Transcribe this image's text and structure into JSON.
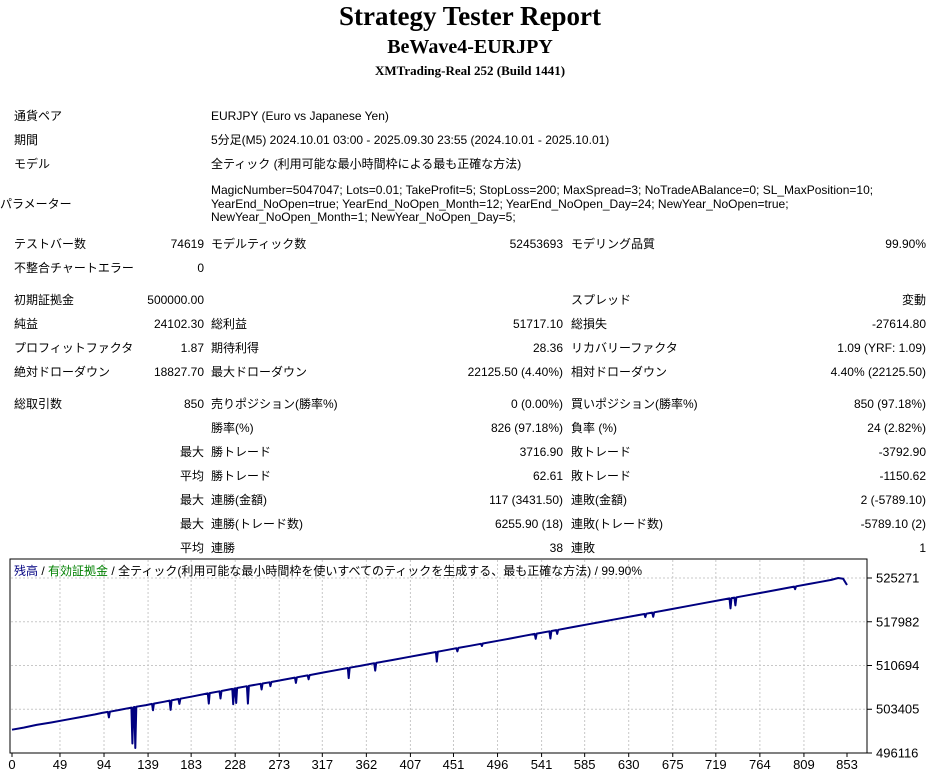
{
  "header": {
    "title": "Strategy Tester Report",
    "subtitle": "BeWave4-EURJPY",
    "server": "XMTrading-Real 252 (Build 1441)"
  },
  "report": {
    "rows": [
      {
        "type": "wide",
        "label": "通貨ペア",
        "value": "EURJPY (Euro vs Japanese Yen)"
      },
      {
        "type": "wide",
        "label": "期間",
        "value": "5分足(M5) 2024.10.01 03:00 - 2025.09.30 23:55 (2024.10.01 - 2025.10.01)"
      },
      {
        "type": "wide",
        "label": "モデル",
        "value": "全ティック (利用可能な最小時間枠による最も正確な方法)"
      },
      {
        "type": "params",
        "label": "パラメーター",
        "lines": [
          "MagicNumber=5047047; Lots=0.01; TakeProfit=5; StopLoss=200; MaxSpread=3; NoTradeABalance=0; SL_MaxPosition=10;",
          "YearEnd_NoOpen=true; YearEnd_NoOpen_Month=12; YearEnd_NoOpen_Day=24; NewYear_NoOpen=true;",
          "NewYear_NoOpen_Month=1; NewYear_NoOpen_Day=5;"
        ]
      },
      {
        "type": "six",
        "cells": [
          "テストバー数",
          "74619",
          "モデルティック数",
          "52453693",
          "モデリング品質",
          "99.90%"
        ]
      },
      {
        "type": "six",
        "cells": [
          "不整合チャートエラー",
          "0",
          "",
          "",
          "",
          ""
        ]
      },
      {
        "type": "gap"
      },
      {
        "type": "six",
        "cells": [
          "初期証拠金",
          "500000.00",
          "",
          "",
          "スプレッド",
          "変動"
        ]
      },
      {
        "type": "six",
        "cells": [
          "純益",
          "24102.30",
          "総利益",
          "51717.10",
          "総損失",
          "-27614.80"
        ]
      },
      {
        "type": "six",
        "cells": [
          "プロフィットファクタ",
          "1.87",
          "期待利得",
          "28.36",
          "リカバリーファクタ",
          "1.09 (YRF: 1.09)"
        ]
      },
      {
        "type": "six",
        "cells": [
          "絶対ドローダウン",
          "18827.70",
          "最大ドローダウン",
          "22125.50 (4.40%)",
          "相対ドローダウン",
          "4.40% (22125.50)"
        ]
      },
      {
        "type": "gap"
      },
      {
        "type": "six",
        "cells": [
          "総取引数",
          "850",
          "売りポジション(勝率%)",
          "0 (0.00%)",
          "買いポジション(勝率%)",
          "850 (97.18%)"
        ]
      },
      {
        "type": "six",
        "cells": [
          "",
          "",
          "勝率(%)",
          "826 (97.18%)",
          "負率 (%)",
          "24 (2.82%)"
        ]
      },
      {
        "type": "six",
        "cells": [
          "",
          "最大",
          "勝トレード",
          "3716.90",
          "敗トレード",
          "-3792.90"
        ]
      },
      {
        "type": "six",
        "cells": [
          "",
          "平均",
          "勝トレード",
          "62.61",
          "敗トレード",
          "-1150.62"
        ]
      },
      {
        "type": "six",
        "cells": [
          "",
          "最大",
          "連勝(金額)",
          "117 (3431.50)",
          "連敗(金額)",
          "2 (-5789.10)"
        ]
      },
      {
        "type": "six",
        "cells": [
          "",
          "最大",
          "連勝(トレード数)",
          "6255.90 (18)",
          "連敗(トレード数)",
          "-5789.10 (2)"
        ]
      },
      {
        "type": "six",
        "cells": [
          "",
          "平均",
          "連勝",
          "38",
          "連敗",
          "1"
        ]
      }
    ]
  },
  "chart_data": {
    "type": "line",
    "legend": {
      "balance": "残高",
      "equity": "有効証拠金",
      "model": "全ティック(利用可能な最小時間枠を使いすべてのティックを生成する、最も正確な方法)",
      "quality": "99.90%",
      "separator": " / "
    },
    "x_ticks": [
      0,
      49,
      94,
      139,
      183,
      228,
      273,
      317,
      362,
      407,
      451,
      496,
      541,
      585,
      630,
      675,
      719,
      764,
      809,
      853
    ],
    "y_ticks": [
      525271,
      517982,
      510694,
      503405,
      496116
    ],
    "xlim": [
      0,
      853
    ],
    "ylim": [
      496116,
      528437
    ],
    "grid": "dashed",
    "initial_deposit": 500000,
    "final_balance": 524102.3,
    "series": [
      {
        "name": "残高",
        "color": "#000080",
        "points": [
          [
            0,
            500000
          ],
          [
            12,
            500350
          ],
          [
            25,
            500800
          ],
          [
            40,
            501200
          ],
          [
            55,
            501650
          ],
          [
            70,
            502100
          ],
          [
            85,
            502550
          ],
          [
            92,
            502800
          ],
          [
            98,
            502960
          ],
          [
            99,
            502050
          ],
          [
            100,
            503000
          ],
          [
            110,
            503300
          ],
          [
            122,
            503680
          ],
          [
            123,
            497700
          ],
          [
            124,
            503730
          ],
          [
            125,
            503780
          ],
          [
            126,
            496950
          ],
          [
            127,
            503830
          ],
          [
            137,
            504100
          ],
          [
            143,
            504300
          ],
          [
            144,
            503250
          ],
          [
            145,
            504350
          ],
          [
            155,
            504650
          ],
          [
            161,
            504850
          ],
          [
            162,
            503300
          ],
          [
            163,
            504900
          ],
          [
            170,
            505120
          ],
          [
            171,
            504300
          ],
          [
            172,
            505170
          ],
          [
            185,
            505570
          ],
          [
            200,
            506050
          ],
          [
            201,
            504350
          ],
          [
            202,
            506100
          ],
          [
            212,
            506400
          ],
          [
            213,
            505200
          ],
          [
            214,
            506450
          ],
          [
            225,
            506790
          ],
          [
            226,
            504250
          ],
          [
            227,
            506840
          ],
          [
            228,
            506890
          ],
          [
            229,
            504450
          ],
          [
            230,
            506940
          ],
          [
            240,
            507240
          ],
          [
            241,
            504350
          ],
          [
            242,
            507290
          ],
          [
            254,
            507650
          ],
          [
            255,
            506700
          ],
          [
            256,
            507700
          ],
          [
            263,
            507900
          ],
          [
            264,
            507250
          ],
          [
            265,
            507950
          ],
          [
            278,
            508340
          ],
          [
            289,
            508670
          ],
          [
            290,
            507800
          ],
          [
            291,
            508720
          ],
          [
            302,
            509050
          ],
          [
            303,
            508400
          ],
          [
            304,
            509100
          ],
          [
            318,
            509520
          ],
          [
            331,
            509910
          ],
          [
            343,
            510270
          ],
          [
            344,
            508600
          ],
          [
            345,
            510320
          ],
          [
            357,
            510680
          ],
          [
            370,
            511070
          ],
          [
            371,
            509850
          ],
          [
            372,
            511120
          ],
          [
            388,
            511600
          ],
          [
            404,
            512080
          ],
          [
            419,
            512530
          ],
          [
            433,
            512950
          ],
          [
            434,
            511350
          ],
          [
            435,
            513000
          ],
          [
            446,
            513330
          ],
          [
            454,
            513570
          ],
          [
            455,
            513050
          ],
          [
            456,
            513620
          ],
          [
            468,
            513980
          ],
          [
            479,
            514310
          ],
          [
            480,
            513950
          ],
          [
            481,
            514360
          ],
          [
            494,
            514750
          ],
          [
            509,
            515200
          ],
          [
            524,
            515650
          ],
          [
            534,
            515950
          ],
          [
            535,
            515150
          ],
          [
            536,
            516000
          ],
          [
            549,
            516390
          ],
          [
            550,
            515200
          ],
          [
            551,
            516440
          ],
          [
            556,
            516590
          ],
          [
            557,
            515950
          ],
          [
            558,
            516640
          ],
          [
            574,
            517120
          ],
          [
            589,
            517570
          ],
          [
            604,
            518020
          ],
          [
            619,
            518470
          ],
          [
            634,
            518920
          ],
          [
            646,
            519280
          ],
          [
            647,
            518750
          ],
          [
            648,
            519330
          ],
          [
            654,
            519510
          ],
          [
            655,
            518800
          ],
          [
            656,
            519560
          ],
          [
            671,
            520010
          ],
          [
            689,
            520550
          ],
          [
            709,
            521150
          ],
          [
            724,
            521600
          ],
          [
            733,
            521870
          ],
          [
            734,
            520200
          ],
          [
            735,
            521920
          ],
          [
            738,
            522010
          ],
          [
            739,
            520700
          ],
          [
            740,
            522060
          ],
          [
            754,
            522480
          ],
          [
            769,
            522930
          ],
          [
            784,
            523380
          ],
          [
            799,
            523830
          ],
          [
            800,
            523400
          ],
          [
            801,
            523880
          ],
          [
            814,
            524270
          ],
          [
            827,
            524660
          ],
          [
            837,
            524960
          ],
          [
            844,
            525271
          ],
          [
            849,
            525150
          ],
          [
            853,
            524102
          ]
        ]
      }
    ]
  },
  "colors": {
    "balance_line": "#000080",
    "equity_label": "#008000",
    "grid": "#c8c8c8",
    "border": "#000000",
    "text": "#000000",
    "background": "#ffffff"
  }
}
